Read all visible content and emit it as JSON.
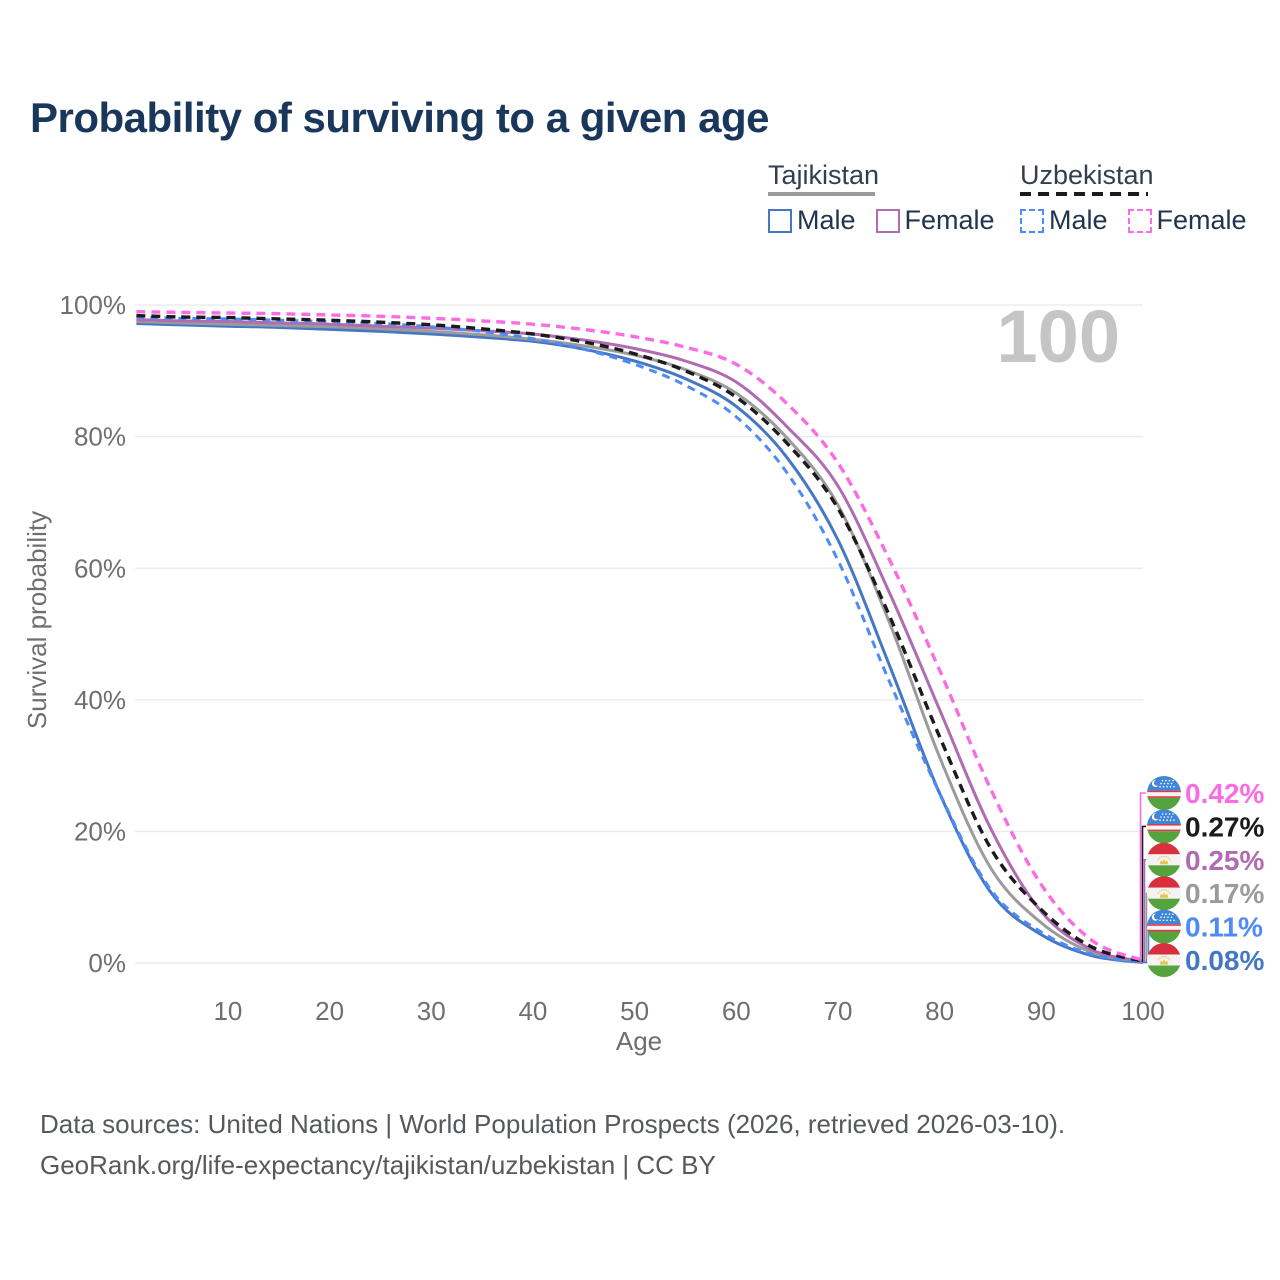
{
  "page": {
    "title": "Probability of surviving to a given age"
  },
  "legend": {
    "groups": [
      {
        "label": "Tajikistan",
        "line_style": "solid",
        "line_color": "#9b9b9b",
        "items": [
          {
            "label": "Male",
            "color": "#4478c4"
          },
          {
            "label": "Female",
            "color": "#b06bb3"
          }
        ]
      },
      {
        "label": "Uzbekistan",
        "line_style": "dashed",
        "line_color": "#1b1b1b",
        "items": [
          {
            "label": "Male",
            "color": "#4f8bf7"
          },
          {
            "label": "Female",
            "color": "#fb6ce4"
          }
        ]
      }
    ]
  },
  "chart_data": {
    "type": "line",
    "title": "Probability of surviving to a given age",
    "xlabel": "Age",
    "ylabel": "Survival probability",
    "xlim": [
      1,
      100
    ],
    "ylim": [
      0,
      100
    ],
    "x_ticks": [
      10,
      20,
      30,
      40,
      50,
      60,
      70,
      80,
      90,
      100
    ],
    "y_ticks": [
      0,
      20,
      40,
      60,
      80,
      100
    ],
    "y_tick_suffix": "%",
    "grid": true,
    "hover_age_watermark": "100",
    "ages": [
      1,
      5,
      10,
      15,
      20,
      25,
      30,
      35,
      40,
      45,
      50,
      55,
      60,
      65,
      70,
      75,
      80,
      85,
      90,
      95,
      100
    ],
    "series": [
      {
        "name": "Uzbekistan Female",
        "color": "#fb6ce4",
        "dash": "9,6",
        "width": 3.4,
        "end_label": "0.42%",
        "flag": "uzbekistan",
        "values": [
          99.0,
          98.9,
          98.8,
          98.7,
          98.5,
          98.3,
          98.0,
          97.6,
          97.1,
          96.3,
          95.2,
          93.6,
          91.0,
          85.0,
          76.0,
          61.5,
          44.5,
          26.5,
          11.9,
          3.4,
          0.42
        ]
      },
      {
        "name": "Uzbekistan Both sexes",
        "color": "#1b1b1b",
        "dash": "9,6",
        "width": 3.4,
        "end_label": "0.27%",
        "flag": "uzbekistan",
        "values": [
          98.4,
          98.2,
          98.1,
          97.9,
          97.7,
          97.4,
          97.0,
          96.4,
          95.6,
          94.4,
          92.6,
          90.0,
          86.0,
          79.0,
          69.1,
          53.0,
          34.4,
          17.5,
          8.1,
          2.4,
          0.27
        ]
      },
      {
        "name": "Tajikistan Female",
        "color": "#b06bb3",
        "dash": null,
        "width": 3,
        "end_label": "0.25%",
        "flag": "tajikistan",
        "values": [
          97.8,
          97.6,
          97.5,
          97.3,
          97.1,
          96.8,
          96.5,
          96.1,
          95.6,
          94.7,
          93.4,
          91.5,
          88.3,
          81.5,
          72.5,
          56.5,
          38.5,
          20.5,
          7.8,
          2.0,
          0.25
        ]
      },
      {
        "name": "Tajikistan Both sexes",
        "color": "#9b9b9b",
        "dash": null,
        "width": 3,
        "end_label": "0.17%",
        "flag": "tajikistan",
        "values": [
          97.5,
          97.3,
          97.1,
          96.9,
          96.7,
          96.4,
          96.0,
          95.5,
          94.8,
          93.8,
          92.4,
          90.2,
          86.6,
          79.8,
          69.6,
          52.0,
          31.3,
          14.5,
          6.1,
          1.6,
          0.17
        ]
      },
      {
        "name": "Uzbekistan Male",
        "color": "#4f8bf7",
        "dash": "8,6",
        "width": 3,
        "end_label": "0.11%",
        "flag": "uzbekistan",
        "values": [
          98.2,
          98.0,
          97.9,
          97.7,
          97.5,
          97.2,
          96.7,
          96.0,
          94.9,
          93.3,
          91.0,
          87.8,
          83.0,
          74.5,
          61.2,
          43.0,
          25.8,
          11.2,
          4.7,
          1.3,
          0.11
        ]
      },
      {
        "name": "Tajikistan Male",
        "color": "#4478c4",
        "dash": null,
        "width": 3,
        "end_label": "0.08%",
        "flag": "tajikistan",
        "values": [
          97.2,
          97.0,
          96.8,
          96.6,
          96.3,
          96.0,
          95.6,
          95.1,
          94.5,
          93.3,
          91.5,
          88.8,
          84.6,
          76.8,
          64.3,
          45.5,
          25.8,
          10.8,
          4.3,
          1.1,
          0.08
        ]
      }
    ]
  },
  "colors": {
    "grid": "#ebebeb",
    "axis_text": "#6f6f6f",
    "watermark": "#c5c5c5"
  },
  "footer": {
    "line1": "Data sources: United Nations | World Population Prospects (2026, retrieved 2026-03-10).",
    "line2": "GeoRank.org/life-expectancy/tajikistan/uzbekistan | CC BY"
  }
}
